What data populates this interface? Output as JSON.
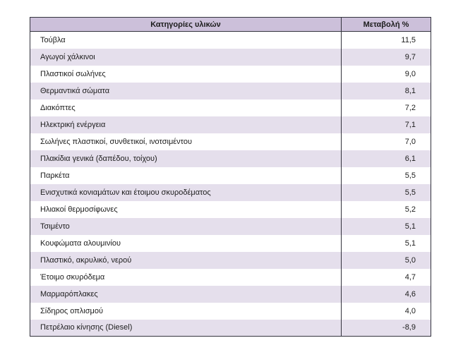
{
  "table": {
    "headers": {
      "category": "Κατηγορίες υλικών",
      "change": "Μεταβολή %"
    },
    "rows": [
      {
        "category": "Τούβλα",
        "change": "11,5"
      },
      {
        "category": "Αγωγοί χάλκινοι",
        "change": "9,7"
      },
      {
        "category": "Πλαστικοί σωλήνες",
        "change": "9,0"
      },
      {
        "category": "Θερμαντικά σώματα",
        "change": "8,1"
      },
      {
        "category": "Διακόπτες",
        "change": "7,2"
      },
      {
        "category": "Ηλεκτρική ενέργεια",
        "change": "7,1"
      },
      {
        "category": "Σωλήνες πλαστικοί, συνθετικοί, ινοτσιμέντου",
        "change": "7,0"
      },
      {
        "category": "Πλακίδια γενικά (δαπέδου, τοίχου)",
        "change": "6,1"
      },
      {
        "category": "Παρκέτα",
        "change": "5,5"
      },
      {
        "category": "Ενισχυτικά κονιαμάτων και έτοιμου σκυροδέματος",
        "change": "5,5"
      },
      {
        "category": "Ηλιακοί θερμοσίφωνες",
        "change": "5,2"
      },
      {
        "category": "Τσιμέντο",
        "change": "5,1"
      },
      {
        "category": "Κουφώματα αλουμινίου",
        "change": "5,1"
      },
      {
        "category": "Πλαστικό, ακρυλικό, νερού",
        "change": "5,0"
      },
      {
        "category": "Έτοιμο σκυρόδεμα",
        "change": "4,7"
      },
      {
        "category": "Μαρμαρόπλακες",
        "change": "4,6"
      },
      {
        "category": "Σίδηρος οπλισμού",
        "change": "4,0"
      },
      {
        "category": "Πετρέλαιο κίνησης (Diesel)",
        "change": "-8,9"
      }
    ],
    "colors": {
      "header_bg": "#ccc0da",
      "alt_row_bg": "#e5dfec",
      "border": "#33333d"
    }
  },
  "chart_data": {
    "type": "table",
    "title": "",
    "columns": [
      "Κατηγορίες υλικών",
      "Μεταβολή %"
    ],
    "categories": [
      "Τούβλα",
      "Αγωγοί χάλκινοι",
      "Πλαστικοί σωλήνες",
      "Θερμαντικά σώματα",
      "Διακόπτες",
      "Ηλεκτρική ενέργεια",
      "Σωλήνες πλαστικοί, συνθετικοί, ινοτσιμέντου",
      "Πλακίδια γενικά (δαπέδου, τοίχου)",
      "Παρκέτα",
      "Ενισχυτικά κονιαμάτων και έτοιμου σκυροδέματος",
      "Ηλιακοί θερμοσίφωνες",
      "Τσιμέντο",
      "Κουφώματα αλουμινίου",
      "Πλαστικό, ακρυλικό, νερού",
      "Έτοιμο σκυρόδεμα",
      "Μαρμαρόπλακες",
      "Σίδηρος οπλισμού",
      "Πετρέλαιο κίνησης (Diesel)"
    ],
    "values": [
      11.5,
      9.7,
      9.0,
      8.1,
      7.2,
      7.1,
      7.0,
      6.1,
      5.5,
      5.5,
      5.2,
      5.1,
      5.1,
      5.0,
      4.7,
      4.6,
      4.0,
      -8.9
    ]
  }
}
